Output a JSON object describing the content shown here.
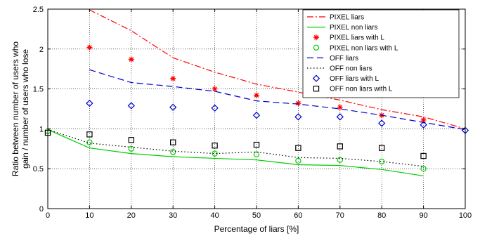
{
  "chart_data": {
    "type": "line",
    "xlabel": "Percentage of liars [%]",
    "ylabel_lines": [
      "Ratio between number of users who",
      "gain / number of users who lose"
    ],
    "xlim": [
      0,
      100
    ],
    "ylim": [
      0,
      2.5
    ],
    "xticks": [
      0,
      10,
      20,
      30,
      40,
      50,
      60,
      70,
      80,
      90,
      100
    ],
    "yticks": [
      0,
      0.5,
      1,
      1.5,
      2,
      2.5
    ],
    "ytick_labels": [
      "0",
      "0.5",
      "1",
      "1.5",
      "2",
      "2.5"
    ],
    "grid": true,
    "legend_position": "top-right",
    "series": [
      {
        "name": "PIXEL liars",
        "kind": "line",
        "color": "#ff0000",
        "dash": "dashdot",
        "x": [
          10,
          20,
          30,
          40,
          50,
          60,
          70,
          80,
          90,
          100
        ],
        "y": [
          2.49,
          2.23,
          1.89,
          1.71,
          1.56,
          1.46,
          1.36,
          1.24,
          1.15,
          1.0
        ]
      },
      {
        "name": "PIXEL non liars",
        "kind": "line",
        "color": "#00cc00",
        "dash": "solid",
        "x": [
          0,
          10,
          20,
          30,
          40,
          50,
          60,
          70,
          80,
          90
        ],
        "y": [
          0.99,
          0.76,
          0.69,
          0.65,
          0.63,
          0.61,
          0.55,
          0.54,
          0.49,
          0.41
        ]
      },
      {
        "name": "PIXEL liars with L",
        "kind": "marker",
        "marker": "asterisk",
        "color": "#ff0000",
        "x": [
          10,
          20,
          30,
          40,
          50,
          60,
          70,
          80,
          90
        ],
        "y": [
          2.02,
          1.87,
          1.63,
          1.5,
          1.42,
          1.32,
          1.27,
          1.17,
          1.11
        ]
      },
      {
        "name": "PIXEL non liars with L",
        "kind": "marker",
        "marker": "circle",
        "color": "#00cc00",
        "x": [
          0,
          10,
          20,
          30,
          40,
          50,
          60,
          70,
          80,
          90
        ],
        "y": [
          0.97,
          0.83,
          0.75,
          0.71,
          0.69,
          0.68,
          0.6,
          0.61,
          0.59,
          0.5
        ]
      },
      {
        "name": "OFF liars",
        "kind": "line",
        "color": "#0000cc",
        "dash": "dashed",
        "x": [
          10,
          20,
          30,
          40,
          50,
          60,
          70,
          80,
          90,
          100
        ],
        "y": [
          1.74,
          1.58,
          1.53,
          1.47,
          1.35,
          1.31,
          1.25,
          1.17,
          1.08,
          0.99
        ]
      },
      {
        "name": "OFF non liars",
        "kind": "line",
        "color": "#000000",
        "dash": "dotted",
        "x": [
          0,
          10,
          20,
          30,
          40,
          50,
          60,
          70,
          80,
          90
        ],
        "y": [
          0.99,
          0.82,
          0.77,
          0.72,
          0.69,
          0.71,
          0.64,
          0.63,
          0.59,
          0.53
        ]
      },
      {
        "name": "OFF liars with L",
        "kind": "marker",
        "marker": "diamond",
        "color": "#0000cc",
        "x": [
          10,
          20,
          30,
          40,
          50,
          60,
          70,
          80,
          90,
          100
        ],
        "y": [
          1.32,
          1.29,
          1.27,
          1.26,
          1.17,
          1.15,
          1.15,
          1.07,
          1.05,
          0.98
        ]
      },
      {
        "name": "OFF non liars with L",
        "kind": "marker",
        "marker": "square",
        "color": "#000000",
        "x": [
          0,
          10,
          20,
          30,
          40,
          50,
          60,
          70,
          80,
          90
        ],
        "y": [
          0.95,
          0.93,
          0.86,
          0.83,
          0.79,
          0.8,
          0.76,
          0.78,
          0.76,
          0.66
        ]
      }
    ]
  }
}
